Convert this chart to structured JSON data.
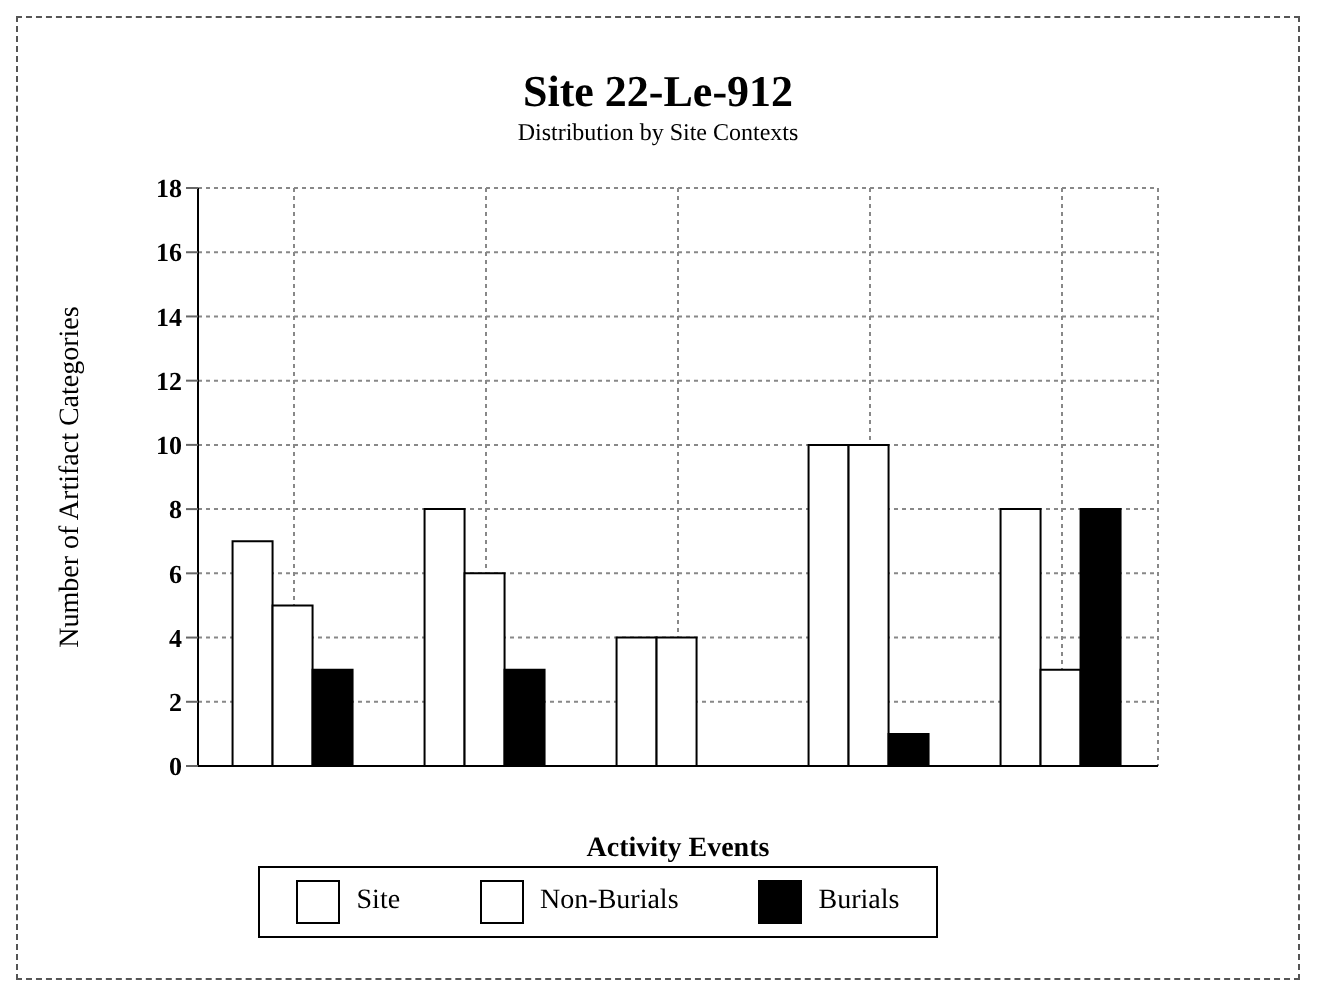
{
  "chart_data": {
    "type": "bar",
    "title": "Site 22-Le-912",
    "subtitle": "Distribution by Site Contexts",
    "xlabel": "Activity Events",
    "ylabel": "Number of Artifact Categories",
    "categories": [
      null,
      null,
      null,
      null,
      null
    ],
    "series": [
      {
        "name": "Site",
        "color": "#ffffff",
        "values": [
          7,
          8,
          4,
          10,
          8
        ]
      },
      {
        "name": "Non-Burials",
        "color": "#ffffff",
        "values": [
          5,
          6,
          4,
          10,
          3
        ]
      },
      {
        "name": "Burials",
        "color": "#000000",
        "values": [
          3,
          3,
          0,
          1,
          8
        ]
      }
    ],
    "ylim": [
      0,
      18
    ],
    "yticks": [
      0,
      2,
      4,
      6,
      8,
      10,
      12,
      14,
      16,
      18
    ],
    "grid": true,
    "legend": "bottom"
  }
}
